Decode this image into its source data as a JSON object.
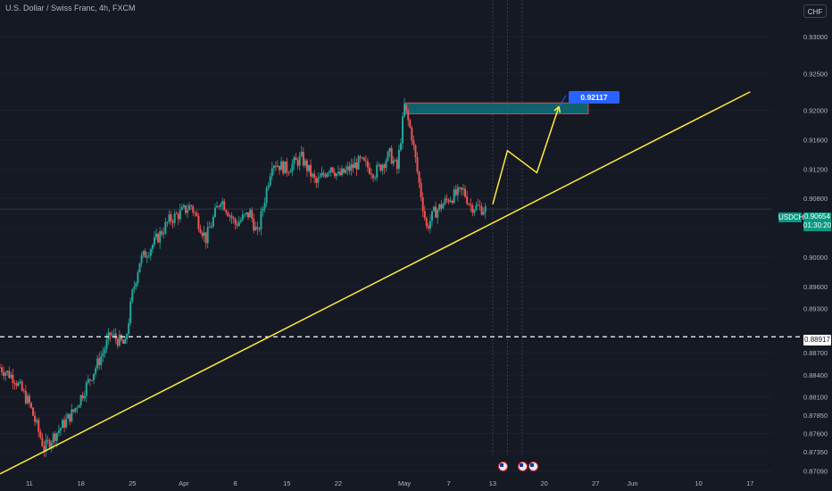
{
  "header": {
    "symbol_title": "U.S. Dollar / Swiss Franc, 4h, FXCM",
    "currency_button": "CHF"
  },
  "price_axis": {
    "ticks": [
      "0.93000",
      "0.92500",
      "0.92000",
      "0.91600",
      "0.91200",
      "0.90800",
      "0.90400",
      "0.90000",
      "0.89600",
      "0.89300",
      "0.88700",
      "0.88400",
      "0.88100",
      "0.87850",
      "0.87600",
      "0.87350",
      "0.87090"
    ],
    "current_ticker": "USDCHF",
    "current_price": "0.90654",
    "countdown": "01:30:20",
    "level_label": "0.88917"
  },
  "time_axis": {
    "ticks": [
      "11",
      "18",
      "25",
      "Apr",
      "8",
      "15",
      "22",
      "May",
      "7",
      "13",
      "20",
      "27",
      "Jun",
      "10",
      "17"
    ]
  },
  "annotation": {
    "target_label": "0.92117"
  },
  "events": {
    "flags": [
      "us-flag-icon",
      "us-flag-icon",
      "us-flag-icon"
    ]
  },
  "colors": {
    "background": "#151924",
    "up_candle": "#26a69a",
    "down_candle": "#ef5350",
    "trendline": "#ffeb3b",
    "target_zone": "#0f6e7a",
    "callout": "#2962ff",
    "price_tag": "#089981"
  },
  "chart_data": {
    "type": "candlestick",
    "symbol": "USDCHF",
    "timeframe": "4h",
    "source": "FXCM",
    "x_range": [
      "Mar 7",
      "Jun 20"
    ],
    "y_range": [
      0.87,
      0.935
    ],
    "close_path": [
      {
        "x": "Mar 7",
        "y": 0.885
      },
      {
        "x": "Mar 9",
        "y": 0.8835
      },
      {
        "x": "Mar 11",
        "y": 0.88
      },
      {
        "x": "Mar 13",
        "y": 0.874
      },
      {
        "x": "Mar 15",
        "y": 0.8765
      },
      {
        "x": "Mar 17",
        "y": 0.879
      },
      {
        "x": "Mar 19",
        "y": 0.883
      },
      {
        "x": "Mar 21",
        "y": 0.887
      },
      {
        "x": "Mar 22",
        "y": 0.8895
      },
      {
        "x": "Mar 24",
        "y": 0.888
      },
      {
        "x": "Mar 25",
        "y": 0.895
      },
      {
        "x": "Mar 26",
        "y": 0.8995
      },
      {
        "x": "Mar 28",
        "y": 0.902
      },
      {
        "x": "Mar 30",
        "y": 0.905
      },
      {
        "x": "Apr 2",
        "y": 0.907
      },
      {
        "x": "Apr 4",
        "y": 0.9025
      },
      {
        "x": "Apr 6",
        "y": 0.908
      },
      {
        "x": "Apr 8",
        "y": 0.9045
      },
      {
        "x": "Apr 10",
        "y": 0.906
      },
      {
        "x": "Apr 11",
        "y": 0.903
      },
      {
        "x": "Apr 13",
        "y": 0.913
      },
      {
        "x": "Apr 15",
        "y": 0.912
      },
      {
        "x": "Apr 17",
        "y": 0.9135
      },
      {
        "x": "Apr 19",
        "y": 0.91
      },
      {
        "x": "Apr 21",
        "y": 0.9125
      },
      {
        "x": "Apr 22",
        "y": 0.911
      },
      {
        "x": "Apr 25",
        "y": 0.913
      },
      {
        "x": "Apr 27",
        "y": 0.9115
      },
      {
        "x": "Apr 29",
        "y": 0.914
      },
      {
        "x": "Apr 30",
        "y": 0.912
      },
      {
        "x": "May 1",
        "y": 0.9205
      },
      {
        "x": "May 2",
        "y": 0.9165
      },
      {
        "x": "May 3",
        "y": 0.91
      },
      {
        "x": "May 4",
        "y": 0.904
      },
      {
        "x": "May 5",
        "y": 0.906
      },
      {
        "x": "May 7",
        "y": 0.908
      },
      {
        "x": "May 9",
        "y": 0.909
      },
      {
        "x": "May 10",
        "y": 0.907
      },
      {
        "x": "May 12",
        "y": 0.9065
      }
    ],
    "target_zone": {
      "from": "May 1",
      "to": "May 26",
      "low": 0.9195,
      "high": 0.921
    },
    "horizontal_level": 0.88917,
    "trendline": [
      {
        "x": "Mar 7",
        "y": 0.8705
      },
      {
        "x": "Jun 17",
        "y": 0.9225
      }
    ],
    "projection": [
      {
        "x": "May 13",
        "y": 0.9072
      },
      {
        "x": "May 15",
        "y": 0.9145
      },
      {
        "x": "May 19",
        "y": 0.9115
      },
      {
        "x": "May 22",
        "y": 0.9205
      }
    ],
    "target_label": "0.92117",
    "last_price": "0.90654"
  }
}
